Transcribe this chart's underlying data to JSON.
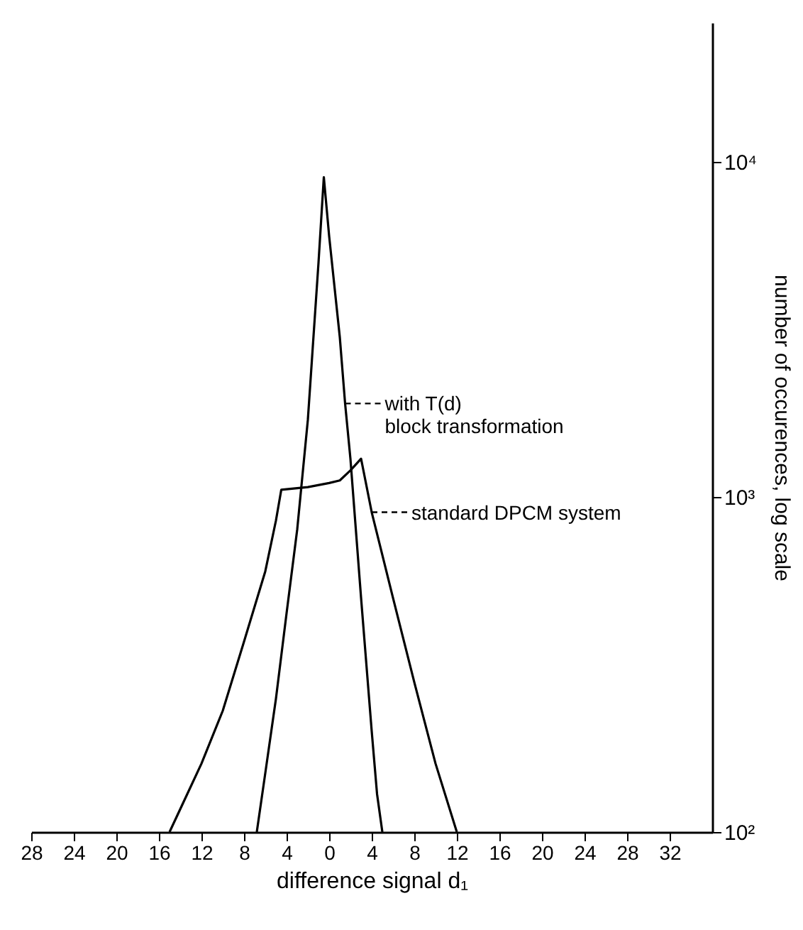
{
  "chart_data": {
    "type": "line",
    "xlabel": "difference signal d₁",
    "ylabel": "number of occurences, log scale",
    "log": "y",
    "grid": false,
    "marker": "none",
    "line_style": "solid",
    "xlim": [
      -28,
      36
    ],
    "ylim": [
      100,
      26000
    ],
    "xticks": [
      {
        "value": -28,
        "label": "28"
      },
      {
        "value": -24,
        "label": "24"
      },
      {
        "value": -20,
        "label": "20"
      },
      {
        "value": -16,
        "label": "16"
      },
      {
        "value": -12,
        "label": "12"
      },
      {
        "value": -8,
        "label": "8"
      },
      {
        "value": -4,
        "label": "4"
      },
      0,
      4,
      8,
      12,
      16,
      20,
      24,
      28,
      32
    ],
    "yticks": [
      {
        "value": 100,
        "label": "10²"
      },
      {
        "value": 1000,
        "label": "10³"
      },
      {
        "value": 10000,
        "label": "10⁴"
      }
    ],
    "series": [
      {
        "color": "#000000",
        "x": [
          -6.8,
          -6,
          -5,
          -4,
          -3,
          -2,
          -1,
          -0.5,
          0,
          1,
          1.5,
          2,
          3,
          4,
          4.5,
          5
        ],
        "values": [
          100,
          150,
          250,
          450,
          800,
          1700,
          5000,
          9000,
          6000,
          3000,
          1900,
          1300,
          500,
          200,
          130,
          100
        ]
      },
      {
        "color": "#000000",
        "x": [
          -15,
          -12,
          -10,
          -8,
          -6,
          -5,
          -4.5,
          -2,
          0,
          1,
          2,
          3,
          4,
          6,
          8,
          10,
          12
        ],
        "values": [
          100,
          160,
          230,
          370,
          600,
          850,
          1050,
          1070,
          1100,
          1120,
          1200,
          1300,
          900,
          500,
          280,
          160,
          100
        ]
      }
    ],
    "annotations": [
      {
        "text": "with T(d)\nblock transformation",
        "x": 1.5,
        "y": 1900
      },
      {
        "text": "standard DPCM system",
        "x": 4,
        "y": 900
      }
    ]
  }
}
